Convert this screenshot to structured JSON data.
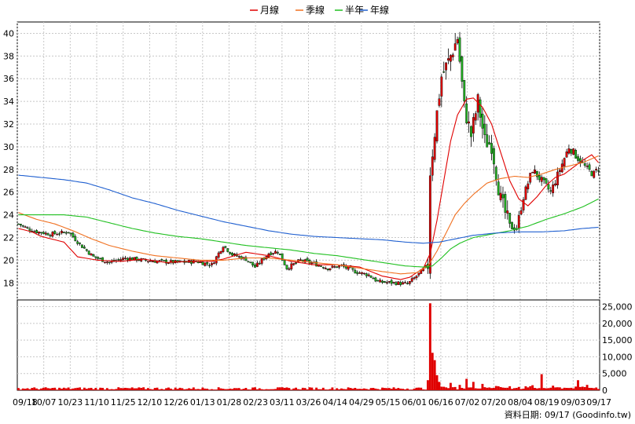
{
  "chart_data": {
    "type": "candlestick",
    "legend": [
      {
        "name": "月線",
        "color": "#e00000"
      },
      {
        "name": "季線",
        "color": "#f07020"
      },
      {
        "name": "半年",
        "color": "#20c020"
      },
      {
        "name": "年線",
        "color": "#2060d0"
      }
    ],
    "legend_position": "top-center",
    "price_ylim": [
      16.5,
      41
    ],
    "price_yticks": [
      18,
      20,
      22,
      24,
      26,
      28,
      30,
      32,
      34,
      36,
      38,
      40
    ],
    "volume_ylim": [
      0,
      27000
    ],
    "volume_yticks": [
      0,
      5000,
      10000,
      15000,
      20000,
      25000
    ],
    "volume_ytick_labels": [
      "0",
      "5,000",
      "10,000",
      "15,000",
      "20,000",
      "25,000"
    ],
    "x_tick_labels": [
      "09/18",
      "10/07",
      "10/23",
      "11/10",
      "11/25",
      "12/10",
      "12/26",
      "01/13",
      "01/28",
      "02/23",
      "03/11",
      "03/26",
      "04/14",
      "04/29",
      "05/15",
      "06/01",
      "06/16",
      "07/02",
      "07/20",
      "08/04",
      "08/19",
      "09/03",
      "09/17"
    ],
    "grid": true,
    "up_color": "#e00000",
    "down_color": "#20b020",
    "price_anchors": [
      [
        0,
        23.2
      ],
      [
        6,
        22.6
      ],
      [
        14,
        22.3
      ],
      [
        22,
        22.5
      ],
      [
        27,
        21.4
      ],
      [
        33,
        20.3
      ],
      [
        40,
        19.8
      ],
      [
        47,
        20.2
      ],
      [
        55,
        20.0
      ],
      [
        62,
        19.9
      ],
      [
        70,
        19.8
      ],
      [
        78,
        19.9
      ],
      [
        85,
        19.6
      ],
      [
        90,
        21.3
      ],
      [
        94,
        20.5
      ],
      [
        100,
        20.1
      ],
      [
        104,
        19.4
      ],
      [
        110,
        20.6
      ],
      [
        114,
        20.8
      ],
      [
        118,
        19.3
      ],
      [
        124,
        20.0
      ],
      [
        130,
        19.7
      ],
      [
        136,
        19.3
      ],
      [
        142,
        19.5
      ],
      [
        148,
        19.0
      ],
      [
        154,
        18.7
      ],
      [
        158,
        18.1
      ],
      [
        166,
        18.0
      ],
      [
        171,
        17.9
      ],
      [
        175,
        18.6
      ],
      [
        180,
        19.6
      ],
      [
        181,
        27.8
      ],
      [
        184,
        33.0
      ],
      [
        186,
        36.2
      ],
      [
        189,
        37.5
      ],
      [
        193,
        39.6
      ],
      [
        196,
        33.5
      ],
      [
        199,
        31.0
      ],
      [
        202,
        34.0
      ],
      [
        205,
        30.5
      ],
      [
        208,
        30.2
      ],
      [
        212,
        25.3
      ],
      [
        216,
        23.0
      ],
      [
        219,
        22.8
      ],
      [
        222,
        25.6
      ],
      [
        226,
        28.0
      ],
      [
        230,
        27.0
      ],
      [
        234,
        26.0
      ],
      [
        238,
        28.0
      ],
      [
        242,
        30.0
      ],
      [
        246,
        29.0
      ],
      [
        250,
        28.0
      ],
      [
        253,
        27.6
      ],
      [
        255,
        28.1
      ]
    ],
    "ma_month_anchors": [
      [
        0,
        22.8
      ],
      [
        6,
        22.5
      ],
      [
        10,
        22.1
      ],
      [
        20,
        21.6
      ],
      [
        26,
        20.3
      ],
      [
        35,
        20.0
      ],
      [
        45,
        19.9
      ],
      [
        55,
        20.1
      ],
      [
        65,
        19.8
      ],
      [
        75,
        19.9
      ],
      [
        85,
        19.9
      ],
      [
        90,
        20.1
      ],
      [
        100,
        20.7
      ],
      [
        110,
        20.4
      ],
      [
        120,
        19.9
      ],
      [
        130,
        19.6
      ],
      [
        140,
        19.6
      ],
      [
        150,
        19.4
      ],
      [
        160,
        18.6
      ],
      [
        168,
        18.3
      ],
      [
        172,
        18.5
      ],
      [
        175,
        18.9
      ],
      [
        178,
        19.3
      ],
      [
        181,
        20.6
      ],
      [
        184,
        23.5
      ],
      [
        187,
        27.0
      ],
      [
        190,
        30.5
      ],
      [
        193,
        32.8
      ],
      [
        197,
        34.2
      ],
      [
        200,
        34.3
      ],
      [
        204,
        33.5
      ],
      [
        208,
        32.0
      ],
      [
        212,
        29.5
      ],
      [
        216,
        27.0
      ],
      [
        220,
        25.4
      ],
      [
        224,
        24.8
      ],
      [
        228,
        25.6
      ],
      [
        232,
        26.6
      ],
      [
        236,
        27.3
      ],
      [
        240,
        27.6
      ],
      [
        244,
        28.2
      ],
      [
        248,
        28.8
      ],
      [
        252,
        29.3
      ],
      [
        255,
        28.6
      ]
    ],
    "ma_quarter_anchors": [
      [
        0,
        24.2
      ],
      [
        8,
        23.6
      ],
      [
        16,
        23.2
      ],
      [
        24,
        22.6
      ],
      [
        32,
        21.9
      ],
      [
        40,
        21.3
      ],
      [
        50,
        20.8
      ],
      [
        60,
        20.4
      ],
      [
        70,
        20.2
      ],
      [
        80,
        20.0
      ],
      [
        90,
        20.0
      ],
      [
        100,
        20.2
      ],
      [
        110,
        20.2
      ],
      [
        120,
        20.0
      ],
      [
        130,
        19.8
      ],
      [
        140,
        19.6
      ],
      [
        150,
        19.3
      ],
      [
        160,
        19.0
      ],
      [
        168,
        18.8
      ],
      [
        175,
        18.9
      ],
      [
        180,
        19.5
      ],
      [
        184,
        20.8
      ],
      [
        188,
        22.4
      ],
      [
        192,
        24.0
      ],
      [
        196,
        25.0
      ],
      [
        200,
        25.8
      ],
      [
        206,
        26.8
      ],
      [
        212,
        27.2
      ],
      [
        218,
        27.4
      ],
      [
        224,
        27.3
      ],
      [
        230,
        27.6
      ],
      [
        236,
        28.0
      ],
      [
        242,
        28.3
      ],
      [
        248,
        28.6
      ],
      [
        255,
        29.2
      ]
    ],
    "ma_half_anchors": [
      [
        0,
        24.0
      ],
      [
        10,
        24.0
      ],
      [
        20,
        24.0
      ],
      [
        30,
        23.8
      ],
      [
        40,
        23.3
      ],
      [
        50,
        22.8
      ],
      [
        60,
        22.4
      ],
      [
        70,
        22.1
      ],
      [
        80,
        21.9
      ],
      [
        90,
        21.6
      ],
      [
        100,
        21.3
      ],
      [
        110,
        21.1
      ],
      [
        120,
        20.9
      ],
      [
        130,
        20.6
      ],
      [
        140,
        20.4
      ],
      [
        150,
        20.1
      ],
      [
        160,
        19.8
      ],
      [
        170,
        19.5
      ],
      [
        178,
        19.4
      ],
      [
        182,
        19.5
      ],
      [
        186,
        20.2
      ],
      [
        190,
        21.0
      ],
      [
        194,
        21.5
      ],
      [
        200,
        22.0
      ],
      [
        208,
        22.3
      ],
      [
        216,
        22.6
      ],
      [
        224,
        23.0
      ],
      [
        232,
        23.6
      ],
      [
        240,
        24.1
      ],
      [
        248,
        24.7
      ],
      [
        255,
        25.4
      ]
    ],
    "ma_year_anchors": [
      [
        0,
        27.5
      ],
      [
        10,
        27.3
      ],
      [
        20,
        27.1
      ],
      [
        30,
        26.8
      ],
      [
        40,
        26.2
      ],
      [
        50,
        25.5
      ],
      [
        60,
        25.0
      ],
      [
        70,
        24.4
      ],
      [
        80,
        23.9
      ],
      [
        90,
        23.4
      ],
      [
        100,
        23.0
      ],
      [
        110,
        22.6
      ],
      [
        120,
        22.3
      ],
      [
        130,
        22.1
      ],
      [
        140,
        22.0
      ],
      [
        150,
        21.9
      ],
      [
        160,
        21.8
      ],
      [
        170,
        21.6
      ],
      [
        178,
        21.5
      ],
      [
        185,
        21.6
      ],
      [
        190,
        21.8
      ],
      [
        200,
        22.2
      ],
      [
        210,
        22.4
      ],
      [
        220,
        22.5
      ],
      [
        230,
        22.5
      ],
      [
        240,
        22.6
      ],
      [
        248,
        22.8
      ],
      [
        255,
        22.9
      ]
    ],
    "volume_spikes": [
      [
        180,
        3000
      ],
      [
        181,
        26000
      ],
      [
        182,
        11200
      ],
      [
        183,
        9000
      ],
      [
        184,
        4500
      ],
      [
        185,
        2500
      ],
      [
        190,
        2200
      ],
      [
        194,
        1600
      ],
      [
        197,
        3400
      ],
      [
        200,
        2500
      ],
      [
        204,
        1900
      ],
      [
        211,
        1200
      ],
      [
        216,
        1200
      ],
      [
        226,
        1500
      ],
      [
        230,
        4800
      ],
      [
        246,
        3000
      ],
      [
        250,
        1600
      ]
    ],
    "volume_base": 600,
    "n_days": 256
  },
  "footer": {
    "source": "資料日期: 09/17 (Goodinfo.tw)"
  }
}
